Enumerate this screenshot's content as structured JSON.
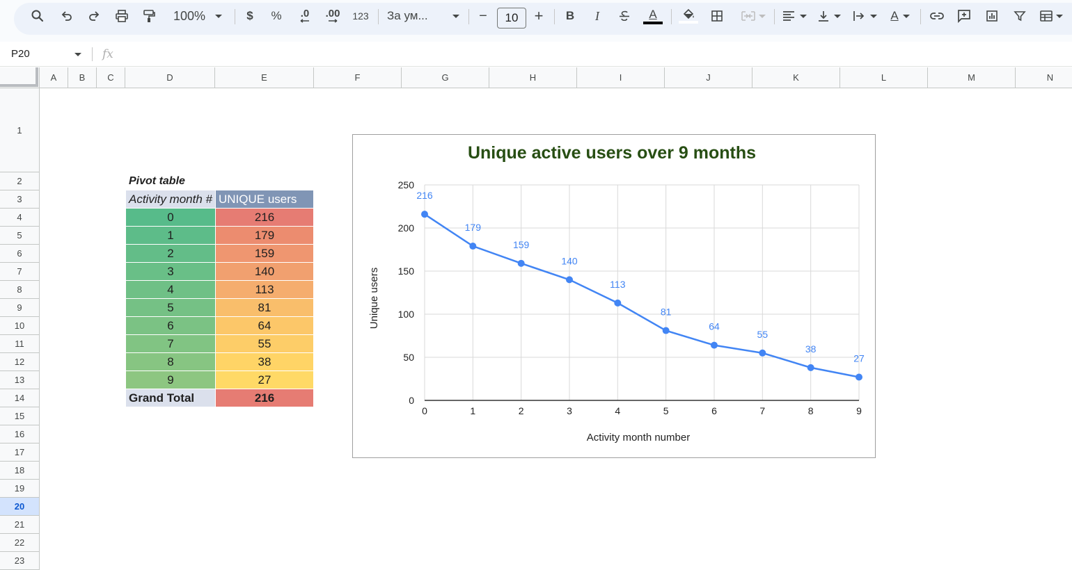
{
  "toolbar": {
    "zoom": "100%",
    "currency": "$",
    "percent": "%",
    "decrease_decimals": ".0",
    "increase_decimals": ".00",
    "number_format": "123",
    "font": "За ум...",
    "font_size": "10",
    "minus": "−",
    "plus": "+",
    "bold": "B",
    "italic": "I",
    "text_color_letter": "A",
    "rotate_letter": "A"
  },
  "formula_bar": {
    "cell_ref": "P20",
    "fx": "fx"
  },
  "columns": [
    "A",
    "B",
    "C",
    "D",
    "E",
    "F",
    "G",
    "H",
    "I",
    "J",
    "K",
    "L",
    "M",
    "N"
  ],
  "rows": [
    "1",
    "2",
    "3",
    "4",
    "5",
    "6",
    "7",
    "8",
    "9",
    "10",
    "11",
    "12",
    "13",
    "14",
    "15",
    "16",
    "17",
    "18",
    "19",
    "20",
    "21",
    "22",
    "23"
  ],
  "selected_row": "20",
  "pivot": {
    "title": "Pivot table",
    "header_month": "Activity month #",
    "header_users": "UNIQUE users",
    "rows": [
      {
        "month": "0",
        "users": "216"
      },
      {
        "month": "1",
        "users": "179"
      },
      {
        "month": "2",
        "users": "159"
      },
      {
        "month": "3",
        "users": "140"
      },
      {
        "month": "4",
        "users": "113"
      },
      {
        "month": "5",
        "users": "81"
      },
      {
        "month": "6",
        "users": "64"
      },
      {
        "month": "7",
        "users": "55"
      },
      {
        "month": "8",
        "users": "38"
      },
      {
        "month": "9",
        "users": "27"
      }
    ],
    "grand_total_label": "Grand Total",
    "grand_total_value": "216",
    "month_colors": [
      "#57bb8a",
      "#5dbc89",
      "#63bd88",
      "#69bf87",
      "#6fc086",
      "#75c185",
      "#7bc284",
      "#81c483",
      "#87c582",
      "#8dc681"
    ],
    "user_colors": [
      "#e67c73",
      "#ec8c6f",
      "#ef9670",
      "#f1a06f",
      "#f5ad6e",
      "#f9be6b",
      "#fcc769",
      "#fdcd68",
      "#ffd466",
      "#ffd966"
    ]
  },
  "chart_data": {
    "type": "line",
    "title": "Unique active users over 9 months",
    "xlabel": "Activity month number",
    "ylabel": "Unique users",
    "x": [
      0,
      1,
      2,
      3,
      4,
      5,
      6,
      7,
      8,
      9
    ],
    "series": [
      {
        "values": [
          216,
          179,
          159,
          140,
          113,
          81,
          64,
          55,
          38,
          27
        ]
      }
    ],
    "ylim": [
      0,
      250
    ],
    "yticks": [
      0,
      50,
      100,
      150,
      200,
      250
    ],
    "grid": true,
    "data_labels": true,
    "title_color": "#274e13",
    "line_color": "#4285f4"
  }
}
